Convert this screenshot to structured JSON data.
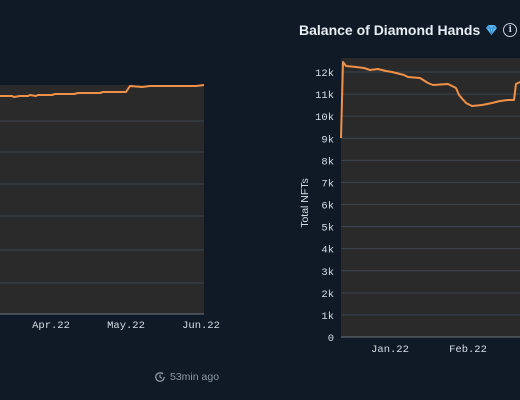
{
  "left_card": {
    "updated": "53min ago",
    "chart_data": {
      "type": "area",
      "x_ticks": [
        "Apr.22",
        "May.22",
        "Jun.22"
      ],
      "series_color": "#f0914a",
      "fill_color": "#2a2a2a"
    }
  },
  "right_card": {
    "title": "Balance of Diamond Hands",
    "title_icons": [
      "gem-icon",
      "info-icon"
    ],
    "chart_data": {
      "type": "area",
      "ylabel": "Total NFTs",
      "y_ticks": [
        "0",
        "1k",
        "2k",
        "3k",
        "4k",
        "5k",
        "6k",
        "7k",
        "8k",
        "9k",
        "10k",
        "11k",
        "12k"
      ],
      "ylim": [
        0,
        12500
      ],
      "x_ticks": [
        "Jan.22",
        "Feb.22"
      ],
      "series_color": "#f0914a",
      "fill_color": "#2a2a2a"
    }
  }
}
